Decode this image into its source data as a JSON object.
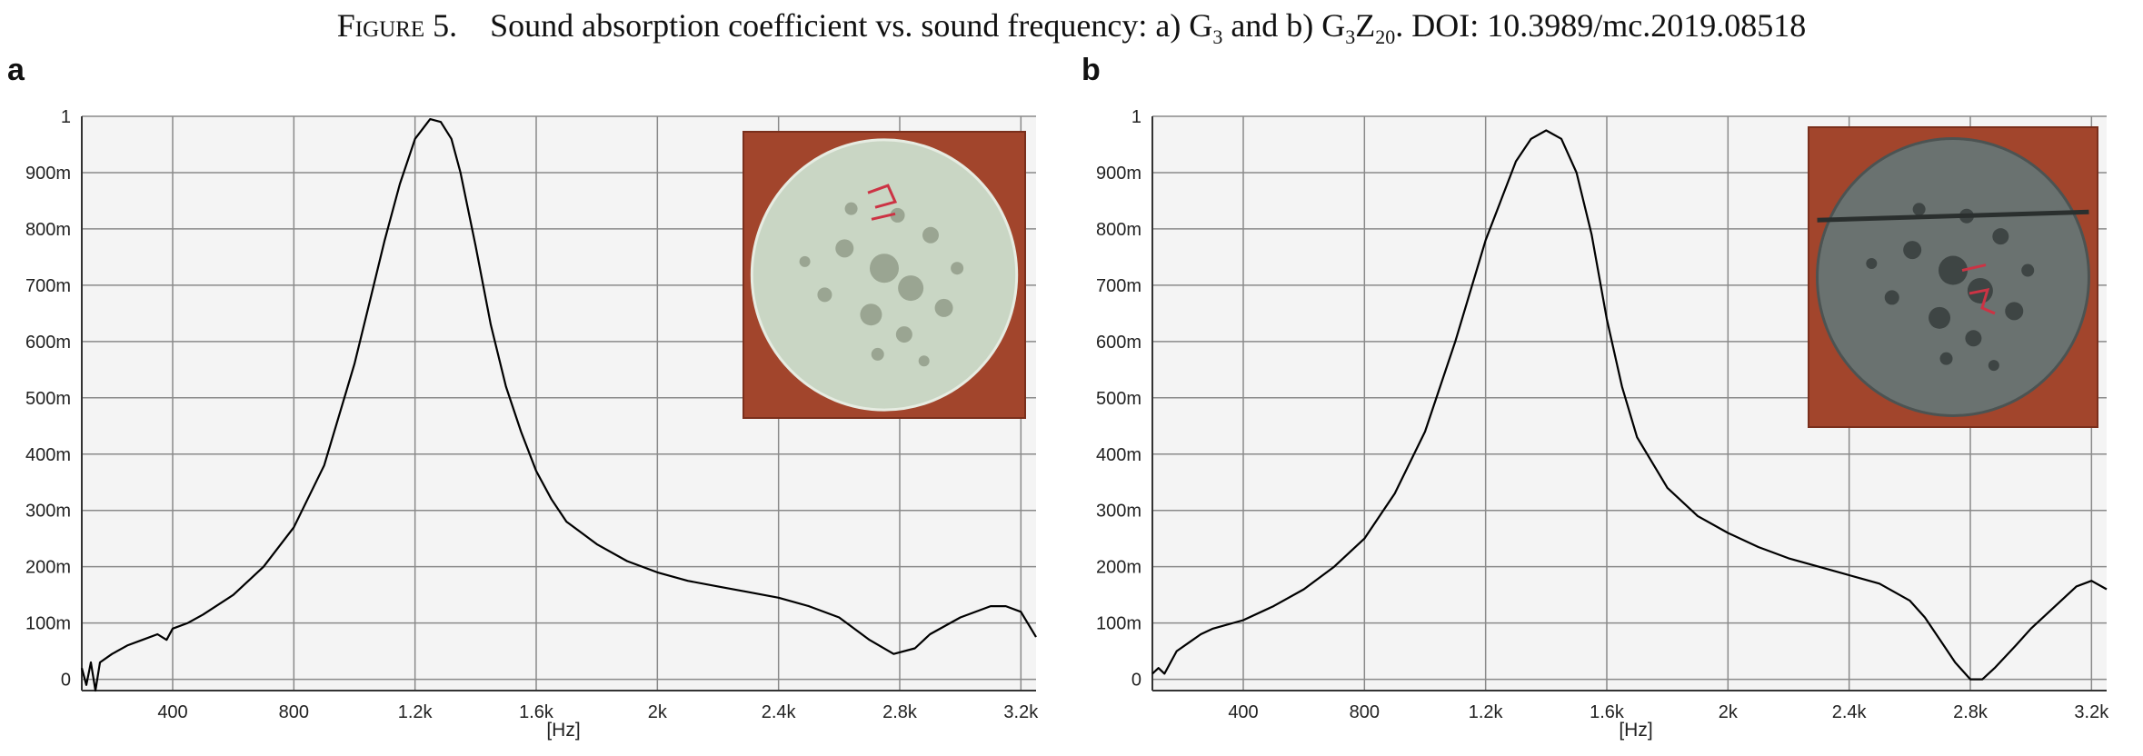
{
  "figure": {
    "caption_prefix": "Figure 5.",
    "caption_main": "Sound absorption coefficient vs. sound frequency: a) G",
    "caption_sub_a": "3",
    "caption_mid": " and b) G",
    "caption_sub_b1": "3",
    "caption_z": "Z",
    "caption_sub_b2": "20",
    "caption_end": ". DOI: 10.3989/mc.2019.08518"
  },
  "colors": {
    "plot_background": "#f4f4f4",
    "grid": "#8a8a8a",
    "curve": "#000000",
    "axis": "#333333"
  },
  "chart_data": [
    {
      "panel_label": "a",
      "type": "line",
      "title": "",
      "xlabel": "[Hz]",
      "ylabel": "",
      "xlim": [
        100,
        3250
      ],
      "ylim": [
        -0.02,
        1.0
      ],
      "x_ticks": [
        400,
        800,
        1200,
        1600,
        2000,
        2400,
        2800,
        3200
      ],
      "x_tick_labels": [
        "400",
        "800",
        "1.2k",
        "1.6k",
        "2k",
        "2.4k",
        "2.8k",
        "3.2k"
      ],
      "y_ticks": [
        0,
        0.1,
        0.2,
        0.3,
        0.4,
        0.5,
        0.6,
        0.7,
        0.8,
        0.9,
        1.0
      ],
      "y_tick_labels": [
        "0",
        "100m",
        "200m",
        "300m",
        "400m",
        "500m",
        "600m",
        "700m",
        "800m",
        "900m",
        "1"
      ],
      "grid": true,
      "inset": "photo of specimen G3 on red-brown background",
      "inset_icon": "specimen-photo-icon",
      "series": [
        {
          "x": [
            100,
            115,
            130,
            145,
            160,
            200,
            250,
            300,
            350,
            380,
            400,
            450,
            500,
            600,
            700,
            800,
            900,
            1000,
            1050,
            1100,
            1150,
            1200,
            1250,
            1285,
            1320,
            1350,
            1400,
            1450,
            1500,
            1550,
            1600,
            1650,
            1700,
            1800,
            1900,
            2000,
            2100,
            2200,
            2300,
            2400,
            2500,
            2600,
            2700,
            2780,
            2850,
            2900,
            3000,
            3100,
            3150,
            3200,
            3250
          ],
          "y": [
            0.02,
            -0.01,
            0.03,
            -0.02,
            0.03,
            0.045,
            0.06,
            0.07,
            0.08,
            0.07,
            0.09,
            0.1,
            0.115,
            0.15,
            0.2,
            0.27,
            0.38,
            0.56,
            0.67,
            0.78,
            0.88,
            0.96,
            0.995,
            0.99,
            0.96,
            0.9,
            0.77,
            0.63,
            0.52,
            0.44,
            0.37,
            0.32,
            0.28,
            0.24,
            0.21,
            0.19,
            0.175,
            0.165,
            0.155,
            0.145,
            0.13,
            0.11,
            0.07,
            0.045,
            0.055,
            0.08,
            0.11,
            0.13,
            0.13,
            0.12,
            0.075
          ]
        }
      ]
    },
    {
      "panel_label": "b",
      "type": "line",
      "title": "",
      "xlabel": "[Hz]",
      "ylabel": "",
      "xlim": [
        100,
        3250
      ],
      "ylim": [
        -0.02,
        1.0
      ],
      "x_ticks": [
        400,
        800,
        1200,
        1600,
        2000,
        2400,
        2800,
        3200
      ],
      "x_tick_labels": [
        "400",
        "800",
        "1.2k",
        "1.6k",
        "2k",
        "2.4k",
        "2.8k",
        "3.2k"
      ],
      "y_ticks": [
        0,
        0.1,
        0.2,
        0.3,
        0.4,
        0.5,
        0.6,
        0.7,
        0.8,
        0.9,
        1.0
      ],
      "y_tick_labels": [
        "0",
        "100m",
        "200m",
        "300m",
        "400m",
        "500m",
        "600m",
        "700m",
        "800m",
        "900m",
        "1"
      ],
      "grid": true,
      "inset": "photo of specimen G3Z20 on red-brown background",
      "inset_icon": "specimen-photo-icon",
      "series": [
        {
          "x": [
            100,
            120,
            140,
            160,
            180,
            220,
            260,
            300,
            400,
            500,
            600,
            700,
            800,
            900,
            1000,
            1100,
            1200,
            1300,
            1350,
            1400,
            1450,
            1500,
            1550,
            1600,
            1650,
            1700,
            1800,
            1900,
            2000,
            2100,
            2200,
            2300,
            2400,
            2500,
            2600,
            2650,
            2700,
            2750,
            2800,
            2840,
            2880,
            2950,
            3000,
            3100,
            3150,
            3200,
            3250
          ],
          "y": [
            0.01,
            0.02,
            0.01,
            0.03,
            0.05,
            0.065,
            0.08,
            0.09,
            0.105,
            0.13,
            0.16,
            0.2,
            0.25,
            0.33,
            0.44,
            0.6,
            0.78,
            0.92,
            0.96,
            0.975,
            0.96,
            0.9,
            0.79,
            0.64,
            0.52,
            0.43,
            0.34,
            0.29,
            0.26,
            0.235,
            0.215,
            0.2,
            0.185,
            0.17,
            0.14,
            0.11,
            0.07,
            0.03,
            0.0,
            0.0,
            0.02,
            0.06,
            0.09,
            0.14,
            0.165,
            0.175,
            0.16
          ]
        }
      ]
    }
  ]
}
